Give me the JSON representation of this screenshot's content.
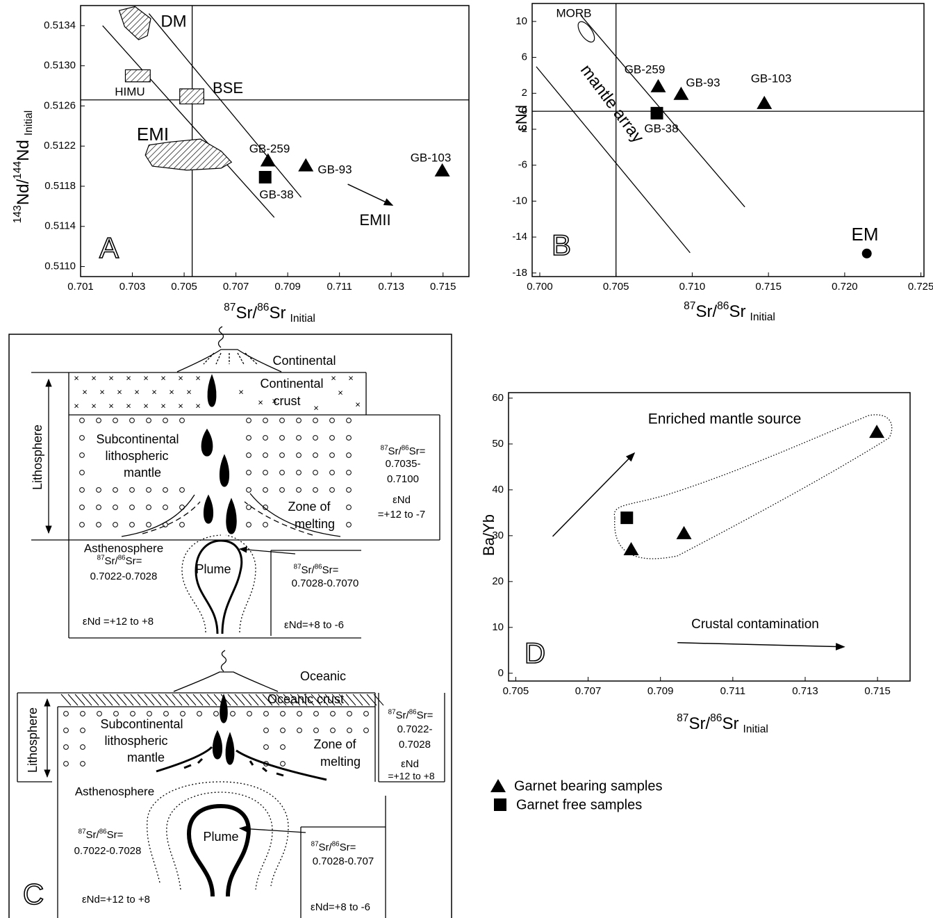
{
  "chart_data": [
    {
      "type": "scatter",
      "panel": "A",
      "x_label": [
        "87",
        "Sr/",
        "86",
        "Sr",
        "Initial"
      ],
      "y_label": [
        "143",
        "Nd/",
        "144",
        "Nd",
        "Initial"
      ],
      "xlim": [
        0.701,
        0.716
      ],
      "ylim": [
        0.5109,
        0.5136
      ],
      "xticks": [
        0.701,
        0.703,
        0.705,
        0.707,
        0.709,
        0.711,
        0.713,
        0.715
      ],
      "yticks": [
        {
          "value": 0.511,
          "label": "0.5110"
        },
        0.5114,
        0.5118,
        0.5122,
        0.5126,
        {
          "value": 0.513,
          "label": "0.5130"
        },
        0.5134
      ],
      "hlines": [
        0.51266
      ],
      "vlines": [
        0.70531
      ],
      "lines": [
        {
          "x": [
            0.70185,
            0.70848
          ],
          "y": [
            0.5134,
            0.51149
          ]
        },
        {
          "x": [
            0.70364,
            0.70952
          ],
          "y": [
            0.51352,
            0.51169
          ]
        }
      ],
      "regions": [
        {
          "label": "DM",
          "x": [
            0.70249,
            0.7031,
            0.70371,
            0.70358,
            0.70324,
            0.7027
          ],
          "y": [
            0.51355,
            0.51359,
            0.51347,
            0.5133,
            0.51326,
            0.51339
          ]
        },
        {
          "label": "HIMU",
          "x": [
            0.70273,
            0.70369,
            0.70369,
            0.70273
          ],
          "y": [
            0.51296,
            0.51296,
            0.51284,
            0.51284
          ]
        },
        {
          "label": "BSE",
          "x": [
            0.70483,
            0.70576,
            0.70576,
            0.70483
          ],
          "y": [
            0.51277,
            0.51277,
            0.51262,
            0.51262
          ]
        },
        {
          "label": "EMI",
          "x": [
            0.70364,
            0.70443,
            0.70563,
            0.70643,
            0.70683,
            0.70643,
            0.7051,
            0.70377,
            0.7035
          ],
          "y": [
            0.51221,
            0.51224,
            0.51227,
            0.51215,
            0.51204,
            0.51198,
            0.51196,
            0.512,
            0.51211
          ]
        }
      ],
      "points": [
        {
          "label": "GB-259",
          "marker": "triangle",
          "x": 0.70824,
          "y": 0.51206
        },
        {
          "label": "GB-93",
          "marker": "triangle",
          "x": 0.7097,
          "y": 0.51201
        },
        {
          "label": "GB-38",
          "marker": "square",
          "x": 0.70813,
          "y": 0.51189
        },
        {
          "label": "GB-103",
          "marker": "triangle",
          "x": 0.71497,
          "y": 0.51196
        }
      ],
      "arrows": [
        {
          "label": "EMII",
          "x": [
            0.71132,
            0.71305
          ],
          "y": [
            0.51182,
            0.51161
          ]
        }
      ]
    },
    {
      "type": "scatter",
      "panel": "B",
      "x_label": [
        "87",
        "Sr/",
        "86",
        "Sr",
        "Initial"
      ],
      "y_label": "εNd",
      "xlim": [
        0.6995,
        0.7252
      ],
      "ylim": [
        -18.4,
        12
      ],
      "xticks": [
        {
          "value": 0.7,
          "label": "0.700"
        },
        0.705,
        {
          "value": 0.71,
          "label": "0.710"
        },
        0.715,
        {
          "value": 0.72,
          "label": "0.720"
        },
        0.725
      ],
      "yticks": [
        10,
        6,
        2,
        0,
        -2,
        -6,
        -10,
        -14,
        -18
      ],
      "hlines": [
        0
      ],
      "vlines": [
        0.705
      ],
      "lines": [
        {
          "x": [
            0.70268,
            0.71345
          ],
          "y": [
            10.7,
            -10.65
          ]
        },
        {
          "x": [
            0.69977,
            0.70986
          ],
          "y": [
            4.97,
            -15.75
          ]
        }
      ],
      "ellipses": [
        {
          "label": "MORB",
          "x": 0.70305,
          "y": 8.84
        }
      ],
      "annotations": [
        "mantle array"
      ],
      "points": [
        {
          "label": "GB-259",
          "marker": "triangle",
          "x": 0.70777,
          "y": 2.81
        },
        {
          "label": "GB-93",
          "marker": "triangle",
          "x": 0.70927,
          "y": 1.96
        },
        {
          "label": "GB-38",
          "marker": "square",
          "x": 0.70768,
          "y": -0.21
        },
        {
          "label": "GB-103",
          "marker": "triangle",
          "x": 0.71473,
          "y": 0.95
        },
        {
          "label": "EM",
          "marker": "circle",
          "x": 0.72145,
          "y": -15.83
        }
      ]
    },
    {
      "type": "scatter",
      "panel": "D",
      "x_label": [
        "87",
        "Sr/",
        "86",
        "Sr",
        "Initial"
      ],
      "y_label": "Ba/Yb",
      "xlim": [
        0.7048,
        0.7159
      ],
      "ylim": [
        -1.7,
        61.2
      ],
      "xticks": [
        0.705,
        0.707,
        0.709,
        0.711,
        0.713,
        0.715
      ],
      "yticks": [
        0,
        10,
        20,
        30,
        40,
        50,
        60
      ],
      "series": [
        {
          "name": "Garnet bearing samples",
          "marker": "triangle",
          "x": [
            0.70819,
            0.70965,
            0.71498
          ],
          "values": [
            27.1,
            30.6,
            52.7
          ]
        },
        {
          "name": "Garnet free samples",
          "marker": "square",
          "x": [
            0.70807
          ],
          "values": [
            33.9
          ]
        }
      ],
      "arrows": [
        {
          "label": "Enriched mantle source",
          "x": [
            0.70602,
            0.70828
          ],
          "y": [
            29.85,
            48.03
          ]
        },
        {
          "label": "Crustal contamination",
          "x": [
            0.70947,
            0.71408
          ],
          "y": [
            6.67,
            5.76
          ]
        }
      ]
    }
  ],
  "diagram": {
    "panel": "C",
    "continental": {
      "labels": [
        "Continental",
        "Continental",
        "crust",
        "Lithosphere",
        "Subcontinental",
        "lithospheric",
        "mantle",
        "Zone of",
        "melting",
        [
          "87",
          "Sr/",
          "86",
          "Sr="
        ],
        "0.7035-",
        "0.7100",
        "εNd",
        "=+12 to -7",
        "Asthenosphere",
        [
          "87",
          "Sr/",
          "86",
          "Sr="
        ],
        "0.7022-0.7028",
        "Plume",
        [
          "87",
          "Sr/",
          "86",
          "Sr="
        ],
        "0.7028-0.7070",
        "εNd =+12 to +8",
        "εNd=+8 to -6"
      ]
    },
    "oceanic": {
      "labels": [
        "Oceanic",
        "Oceanic crust",
        "Lithosphere",
        "Subcontinental",
        "lithospheric",
        "mantle",
        "Zone of",
        "melting",
        [
          "87",
          "Sr/",
          "86",
          "Sr="
        ],
        "0.7022-",
        "0.7028",
        "εNd",
        "=+12 to +8",
        "Asthenosphere",
        [
          "87",
          "Sr/",
          "86",
          "Sr="
        ],
        "0.7022-0.7028",
        "Plume",
        [
          "87",
          "Sr/",
          "86",
          "Sr="
        ],
        "0.7028-0.707",
        "εNd=+12 to +8",
        "εNd=+8 to -6"
      ]
    }
  }
}
